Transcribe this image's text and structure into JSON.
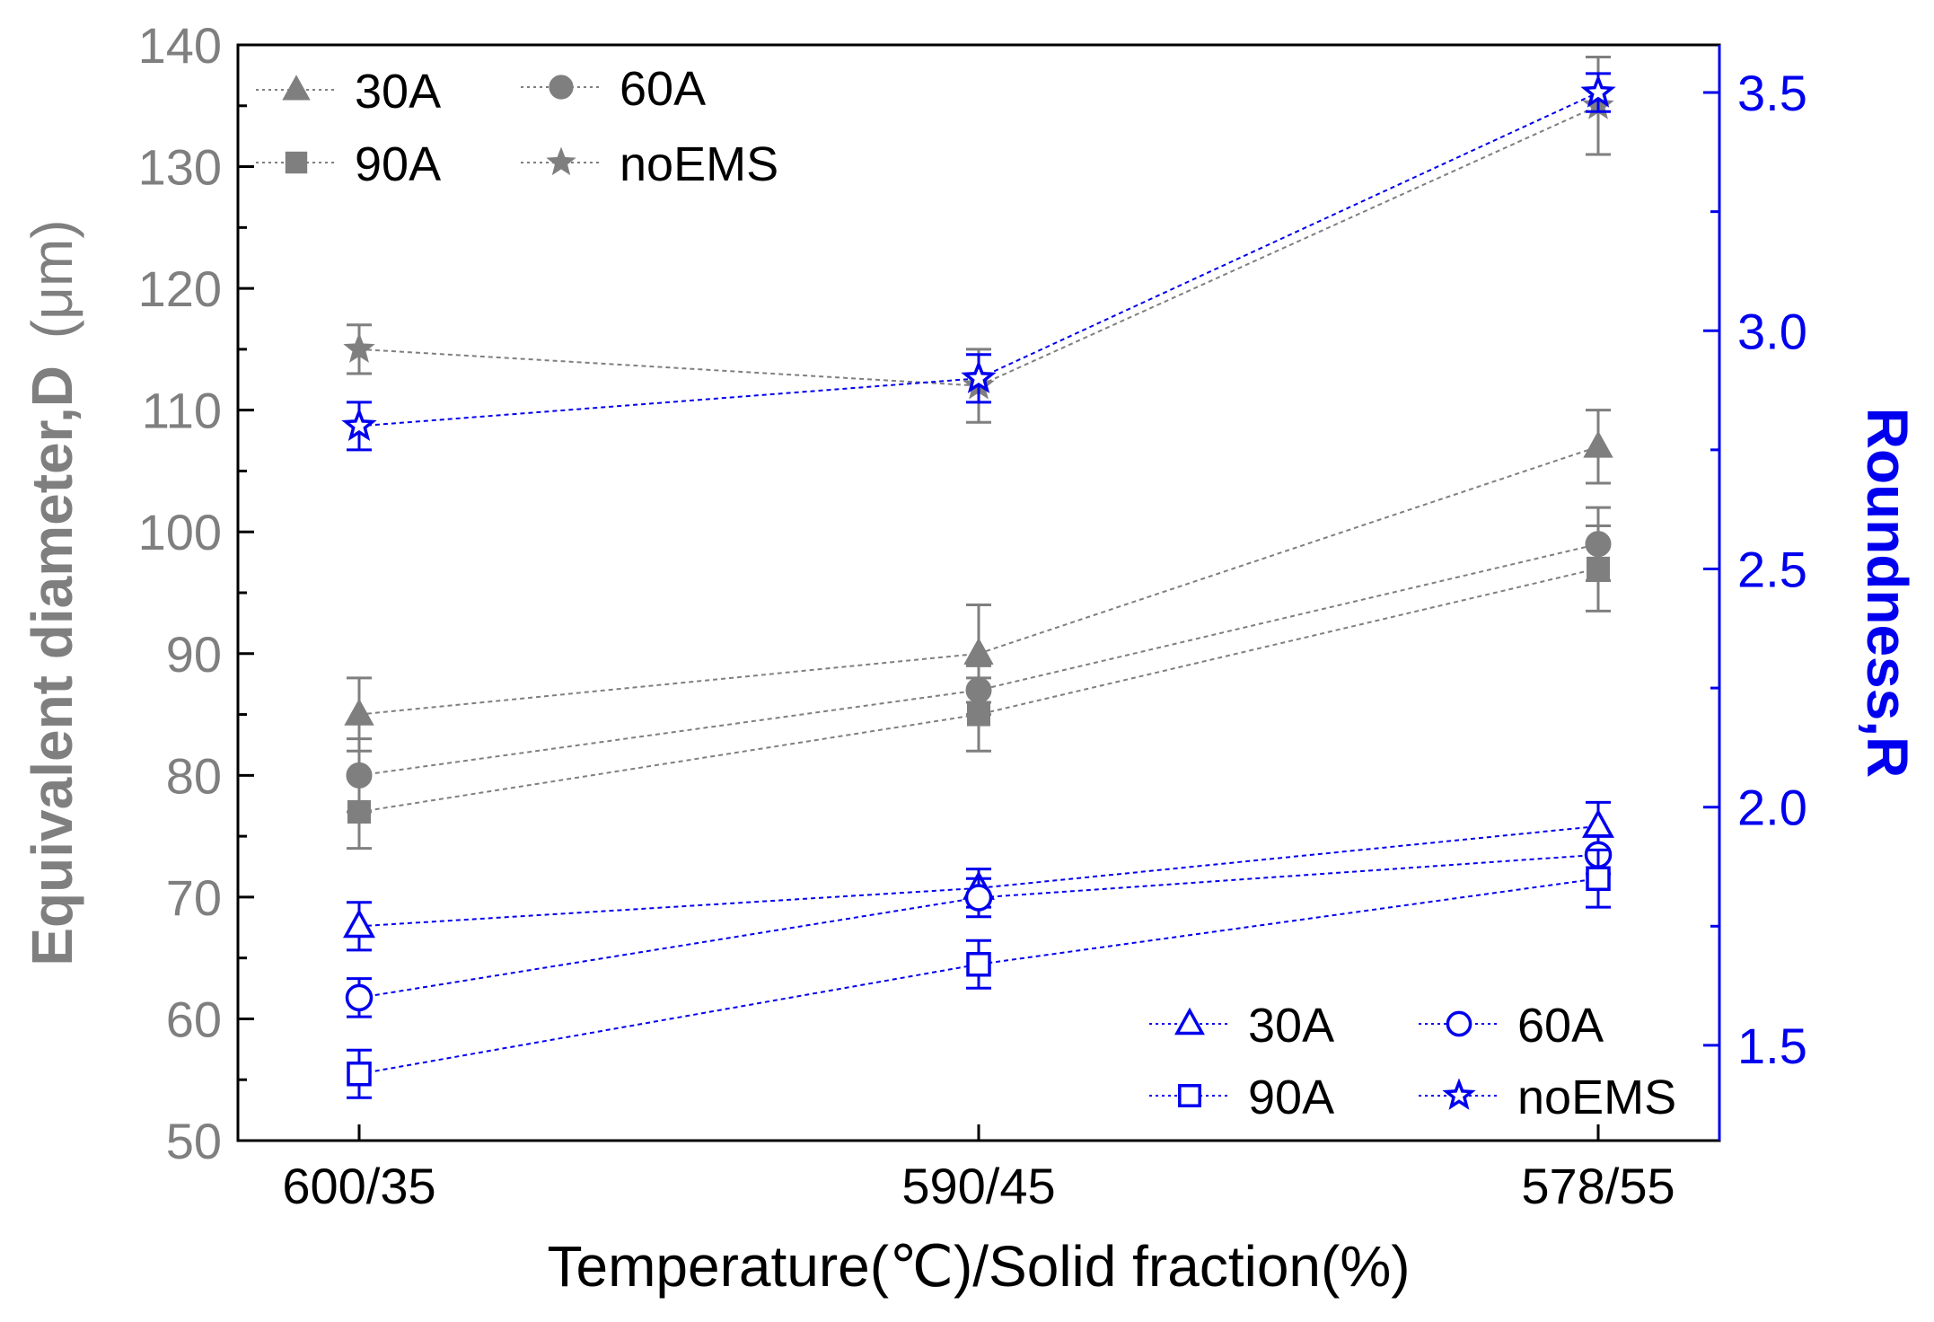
{
  "colors": {
    "gray": "#7f7f7f",
    "blue": "#0000ee",
    "axis": "#000000"
  },
  "chart_data": {
    "type": "line",
    "xlabel": "Temperature(℃)/Solid fraction(%)",
    "categories": [
      "600/35",
      "590/45",
      "578/55"
    ],
    "left_axis": {
      "label_main": "Equivalent diameter,D",
      "label_unit": "(μm)",
      "ylim": [
        50,
        140
      ],
      "ticks": [
        50,
        60,
        70,
        80,
        90,
        100,
        110,
        120,
        130,
        140
      ],
      "tick_labels": [
        "50",
        "60",
        "70",
        "80",
        "90",
        "100",
        "110",
        "120",
        "130",
        "140"
      ]
    },
    "right_axis": {
      "label": "Roundness,R",
      "ylim": [
        1.3,
        3.6
      ],
      "ticks": [
        1.5,
        2.0,
        2.5,
        3.0,
        3.5
      ],
      "tick_labels": [
        "1.5",
        "2.0",
        "2.5",
        "3.0",
        "3.5"
      ]
    },
    "diameter_series": [
      {
        "name": "30A",
        "marker": "triangle",
        "values": [
          85,
          90,
          107
        ],
        "errors": [
          3,
          4,
          3
        ]
      },
      {
        "name": "60A",
        "marker": "circle",
        "values": [
          80,
          87,
          99
        ],
        "errors": [
          3,
          2,
          3
        ]
      },
      {
        "name": "90A",
        "marker": "square",
        "values": [
          77,
          85,
          97
        ],
        "errors": [
          3,
          3,
          3.5
        ]
      },
      {
        "name": "noEMS",
        "marker": "star",
        "values": [
          115,
          112,
          135
        ],
        "errors": [
          2,
          3,
          4
        ]
      }
    ],
    "roundness_series": [
      {
        "name": "30A",
        "marker": "triangle",
        "values": [
          1.75,
          1.83,
          1.96
        ],
        "errors": [
          0.05,
          0.04,
          0.05
        ]
      },
      {
        "name": "60A",
        "marker": "circle",
        "values": [
          1.6,
          1.81,
          1.9
        ],
        "errors": [
          0.04,
          0.04,
          0.04
        ]
      },
      {
        "name": "90A",
        "marker": "square",
        "values": [
          1.44,
          1.67,
          1.85
        ],
        "errors": [
          0.05,
          0.05,
          0.06
        ]
      },
      {
        "name": "noEMS",
        "marker": "star",
        "values": [
          2.8,
          2.9,
          3.5
        ],
        "errors": [
          0.05,
          0.05,
          0.04
        ]
      }
    ],
    "legend_diameter": [
      "30A",
      "60A",
      "90A",
      "noEMS"
    ],
    "legend_roundness": [
      "30A",
      "60A",
      "90A",
      "noEMS"
    ]
  }
}
